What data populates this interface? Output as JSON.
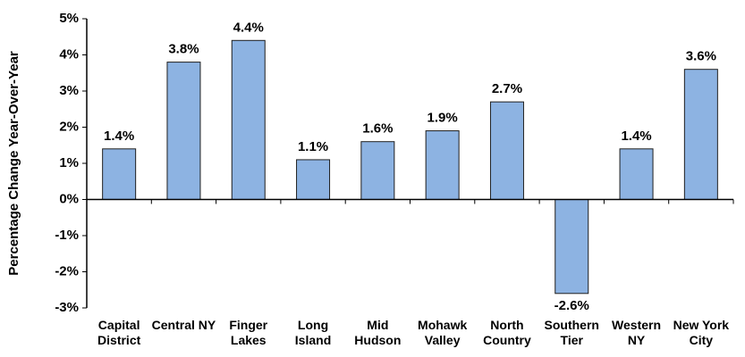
{
  "chart_data": {
    "type": "bar",
    "y_label": "Percentage Change Year-Over-Year",
    "categories": [
      "Capital District",
      "Central NY",
      "Finger Lakes",
      "Long Island",
      "Mid Hudson",
      "Mohawk Valley",
      "North Country",
      "Southern Tier",
      "Western NY",
      "New York City"
    ],
    "values": [
      1.4,
      3.8,
      4.4,
      1.1,
      1.6,
      1.9,
      2.7,
      -2.6,
      1.4,
      3.6
    ],
    "value_labels": [
      "1.4%",
      "3.8%",
      "4.4%",
      "1.1%",
      "1.6%",
      "1.9%",
      "2.7%",
      "-2.6%",
      "1.4%",
      "3.6%"
    ],
    "color": "#8db3e2",
    "ylim": [
      -3,
      5
    ],
    "yticks": [
      {
        "value": -3,
        "label": "-3%"
      },
      {
        "value": -2,
        "label": "-2%"
      },
      {
        "value": -1,
        "label": "-1%"
      },
      {
        "value": 0,
        "label": "0%"
      },
      {
        "value": 1,
        "label": "1%"
      },
      {
        "value": 2,
        "label": "2%"
      },
      {
        "value": 3,
        "label": "3%"
      },
      {
        "value": 4,
        "label": "4%"
      },
      {
        "value": 5,
        "label": "5%"
      }
    ]
  }
}
